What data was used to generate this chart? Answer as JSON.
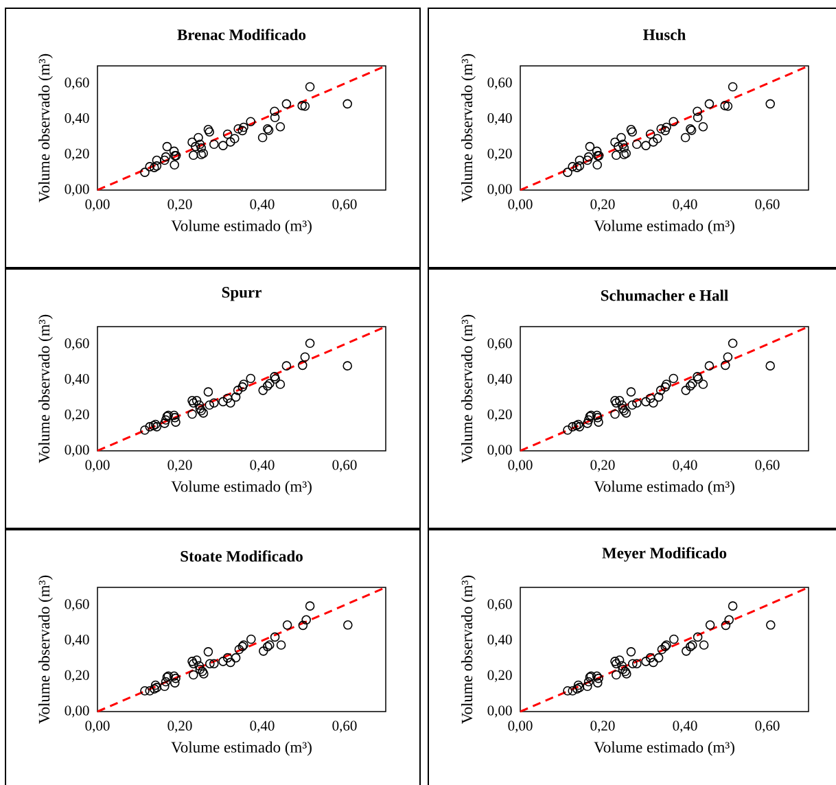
{
  "chart_data": [
    {
      "type": "scatter",
      "title": "**Brenac Modificado**",
      "xlabel": "Volume estimado (m³)",
      "ylabel": "Volume observado (m³)",
      "xlim": [
        0,
        0.7
      ],
      "ylim": [
        0,
        0.7
      ],
      "xticks": [
        {
          "value": 0,
          "label": "0,00"
        },
        {
          "value": 0.2,
          "label": "0,20"
        },
        {
          "value": 0.4,
          "label": "0,40"
        },
        {
          "value": 0.6,
          "label": "0,60"
        }
      ],
      "yticks": [
        {
          "value": 0,
          "label": "0,00"
        },
        {
          "value": 0.2,
          "label": "0,20"
        },
        {
          "value": 0.4,
          "label": "0,40"
        },
        {
          "value": 0.6,
          "label": "0,60"
        }
      ],
      "marker": "circle",
      "series": [
        {
          "color": "#000000",
          "x": [
            0.115,
            0.127,
            0.138,
            0.144,
            0.144,
            0.163,
            0.166,
            0.169,
            0.186,
            0.188,
            0.191,
            0.187,
            0.23,
            0.233,
            0.238,
            0.245,
            0.249,
            0.252,
            0.252,
            0.257,
            0.269,
            0.272,
            0.283,
            0.305,
            0.316,
            0.323,
            0.333,
            0.342,
            0.352,
            0.355,
            0.372,
            0.401,
            0.413,
            0.416,
            0.43,
            0.431,
            0.444,
            0.459,
            0.497,
            0.504,
            0.516,
            0.607
          ],
          "values": [
            0.1,
            0.132,
            0.127,
            0.136,
            0.168,
            0.168,
            0.187,
            0.245,
            0.219,
            0.194,
            0.194,
            0.142,
            0.27,
            0.196,
            0.245,
            0.296,
            0.258,
            0.238,
            0.2,
            0.207,
            0.341,
            0.328,
            0.258,
            0.251,
            0.315,
            0.271,
            0.29,
            0.345,
            0.335,
            0.354,
            0.386,
            0.296,
            0.345,
            0.337,
            0.444,
            0.409,
            0.357,
            0.486,
            0.476,
            0.473,
            0.582,
            0.486
          ]
        },
        {
          "type": "line",
          "color": "#ff0000",
          "line_style": "dashed",
          "marker": "none",
          "x": [
            0,
            0.7
          ],
          "values": [
            0,
            0.7
          ]
        }
      ]
    },
    {
      "type": "scatter",
      "title": "**Husch**",
      "xlabel": "Volume estimado (m³)",
      "ylabel": "Volume observado (m³)",
      "xlim": [
        0,
        0.7
      ],
      "ylim": [
        0,
        0.7
      ],
      "xticks": [
        {
          "value": 0,
          "label": "0,00"
        },
        {
          "value": 0.2,
          "label": "0,20"
        },
        {
          "value": 0.4,
          "label": "0,40"
        },
        {
          "value": 0.6,
          "label": "0,60"
        }
      ],
      "yticks": [
        {
          "value": 0,
          "label": "0,00"
        },
        {
          "value": 0.2,
          "label": "0,20"
        },
        {
          "value": 0.4,
          "label": "0,40"
        },
        {
          "value": 0.6,
          "label": "0,60"
        }
      ],
      "marker": "circle",
      "series": [
        {
          "color": "#000000",
          "x": [
            0.115,
            0.127,
            0.138,
            0.144,
            0.144,
            0.163,
            0.166,
            0.169,
            0.186,
            0.188,
            0.191,
            0.187,
            0.23,
            0.233,
            0.238,
            0.245,
            0.249,
            0.252,
            0.252,
            0.257,
            0.269,
            0.272,
            0.283,
            0.305,
            0.316,
            0.323,
            0.333,
            0.342,
            0.352,
            0.355,
            0.372,
            0.401,
            0.413,
            0.416,
            0.43,
            0.431,
            0.444,
            0.459,
            0.497,
            0.504,
            0.516,
            0.607
          ],
          "values": [
            0.1,
            0.132,
            0.127,
            0.136,
            0.168,
            0.168,
            0.187,
            0.245,
            0.219,
            0.194,
            0.194,
            0.142,
            0.27,
            0.196,
            0.245,
            0.296,
            0.258,
            0.238,
            0.2,
            0.207,
            0.341,
            0.328,
            0.258,
            0.251,
            0.315,
            0.271,
            0.29,
            0.345,
            0.335,
            0.354,
            0.386,
            0.296,
            0.345,
            0.337,
            0.444,
            0.409,
            0.357,
            0.486,
            0.476,
            0.473,
            0.582,
            0.486
          ]
        },
        {
          "type": "line",
          "color": "#ff0000",
          "line_style": "dashed",
          "marker": "none",
          "x": [
            0,
            0.7
          ],
          "values": [
            0,
            0.7
          ]
        }
      ]
    },
    {
      "type": "scatter",
      "title": "**Spurr**",
      "xlabel": "Volume estimado (m³)",
      "ylabel": "Volume observado (m³)",
      "xlim": [
        0,
        0.7
      ],
      "ylim": [
        0,
        0.7
      ],
      "xticks": [
        {
          "value": 0,
          "label": "0,00"
        },
        {
          "value": 0.2,
          "label": "0,20"
        },
        {
          "value": 0.4,
          "label": "0,40"
        },
        {
          "value": 0.6,
          "label": "0,60"
        }
      ],
      "yticks": [
        {
          "value": 0,
          "label": "0,00"
        },
        {
          "value": 0.2,
          "label": "0,20"
        },
        {
          "value": 0.4,
          "label": "0,40"
        },
        {
          "value": 0.6,
          "label": "0,60"
        }
      ],
      "marker": "circle",
      "series": [
        {
          "color": "#000000",
          "x": [
            0.115,
            0.127,
            0.136,
            0.141,
            0.144,
            0.163,
            0.166,
            0.169,
            0.172,
            0.186,
            0.188,
            0.19,
            0.23,
            0.233,
            0.23,
            0.241,
            0.247,
            0.249,
            0.252,
            0.257,
            0.269,
            0.272,
            0.283,
            0.305,
            0.316,
            0.323,
            0.336,
            0.341,
            0.352,
            0.355,
            0.372,
            0.402,
            0.413,
            0.418,
            0.43,
            0.432,
            0.444,
            0.459,
            0.498,
            0.504,
            0.516,
            0.607
          ],
          "values": [
            0.117,
            0.136,
            0.142,
            0.149,
            0.136,
            0.155,
            0.174,
            0.194,
            0.2,
            0.2,
            0.187,
            0.162,
            0.283,
            0.27,
            0.207,
            0.283,
            0.258,
            0.238,
            0.226,
            0.213,
            0.332,
            0.258,
            0.27,
            0.277,
            0.296,
            0.27,
            0.303,
            0.341,
            0.36,
            0.375,
            0.408,
            0.341,
            0.366,
            0.379,
            0.418,
            0.405,
            0.375,
            0.479,
            0.482,
            0.529,
            0.606,
            0.479
          ]
        },
        {
          "type": "line",
          "color": "#ff0000",
          "line_style": "dashed",
          "marker": "none",
          "x": [
            0,
            0.7
          ],
          "values": [
            0,
            0.7
          ]
        }
      ]
    },
    {
      "type": "scatter",
      "title": "**Schumacher e Hall**",
      "xlabel": "Volume estimado (m³)",
      "ylabel": "Volume observado (m³)",
      "xlim": [
        0,
        0.7
      ],
      "ylim": [
        0,
        0.7
      ],
      "xticks": [
        {
          "value": 0,
          "label": "0,00"
        },
        {
          "value": 0.2,
          "label": "0,20"
        },
        {
          "value": 0.4,
          "label": "0,40"
        },
        {
          "value": 0.6,
          "label": "0,60"
        }
      ],
      "yticks": [
        {
          "value": 0,
          "label": "0,00"
        },
        {
          "value": 0.2,
          "label": "0,20"
        },
        {
          "value": 0.4,
          "label": "0,40"
        },
        {
          "value": 0.6,
          "label": "0,60"
        }
      ],
      "marker": "circle",
      "series": [
        {
          "color": "#000000",
          "x": [
            0.115,
            0.127,
            0.136,
            0.141,
            0.144,
            0.163,
            0.166,
            0.169,
            0.172,
            0.186,
            0.188,
            0.19,
            0.23,
            0.233,
            0.23,
            0.241,
            0.247,
            0.249,
            0.252,
            0.257,
            0.269,
            0.272,
            0.283,
            0.305,
            0.316,
            0.323,
            0.336,
            0.341,
            0.352,
            0.355,
            0.372,
            0.402,
            0.413,
            0.418,
            0.43,
            0.432,
            0.444,
            0.459,
            0.498,
            0.504,
            0.516,
            0.607
          ],
          "values": [
            0.117,
            0.136,
            0.142,
            0.149,
            0.136,
            0.155,
            0.174,
            0.194,
            0.2,
            0.2,
            0.187,
            0.162,
            0.283,
            0.27,
            0.207,
            0.283,
            0.258,
            0.238,
            0.226,
            0.213,
            0.332,
            0.258,
            0.27,
            0.277,
            0.296,
            0.27,
            0.303,
            0.341,
            0.36,
            0.375,
            0.408,
            0.341,
            0.366,
            0.379,
            0.418,
            0.405,
            0.375,
            0.479,
            0.482,
            0.529,
            0.606,
            0.479
          ]
        },
        {
          "type": "line",
          "color": "#ff0000",
          "line_style": "dashed",
          "marker": "none",
          "x": [
            0,
            0.7
          ],
          "values": [
            0,
            0.7
          ]
        }
      ]
    },
    {
      "type": "scatter",
      "title": "**Stoate Modificado**",
      "xlabel": "Volume estimado (m³)",
      "ylabel": "Volume observado (m³)",
      "xlim": [
        0,
        0.7
      ],
      "ylim": [
        0,
        0.7
      ],
      "xticks": [
        {
          "value": 0,
          "label": "0,00"
        },
        {
          "value": 0.2,
          "label": "0,20"
        },
        {
          "value": 0.4,
          "label": "0,40"
        },
        {
          "value": 0.6,
          "label": "0,60"
        }
      ],
      "yticks": [
        {
          "value": 0,
          "label": "0,00"
        },
        {
          "value": 0.2,
          "label": "0,20"
        },
        {
          "value": 0.4,
          "label": "0,40"
        },
        {
          "value": 0.6,
          "label": "0,60"
        }
      ],
      "marker": "circle",
      "series": [
        {
          "color": "#000000",
          "x": [
            0.115,
            0.127,
            0.138,
            0.141,
            0.144,
            0.163,
            0.166,
            0.169,
            0.172,
            0.186,
            0.19,
            0.188,
            0.23,
            0.233,
            0.233,
            0.241,
            0.247,
            0.249,
            0.255,
            0.258,
            0.269,
            0.273,
            0.283,
            0.305,
            0.316,
            0.323,
            0.336,
            0.344,
            0.352,
            0.355,
            0.373,
            0.403,
            0.413,
            0.418,
            0.431,
            0.446,
            0.461,
            0.499,
            0.507,
            0.516,
            0.608
          ],
          "values": [
            0.117,
            0.117,
            0.128,
            0.149,
            0.136,
            0.142,
            0.168,
            0.194,
            0.2,
            0.2,
            0.187,
            0.162,
            0.283,
            0.27,
            0.207,
            0.29,
            0.258,
            0.238,
            0.226,
            0.213,
            0.337,
            0.27,
            0.27,
            0.283,
            0.303,
            0.277,
            0.303,
            0.35,
            0.367,
            0.375,
            0.408,
            0.341,
            0.366,
            0.375,
            0.42,
            0.375,
            0.488,
            0.486,
            0.517,
            0.595,
            0.488
          ]
        },
        {
          "type": "line",
          "color": "#ff0000",
          "line_style": "dashed",
          "marker": "none",
          "x": [
            0,
            0.7
          ],
          "values": [
            0,
            0.7
          ]
        }
      ]
    },
    {
      "type": "scatter",
      "title": "**Meyer Modificado**",
      "xlabel": "Volume estimado (m³)",
      "ylabel": "Volume observado (m³)",
      "xlim": [
        0,
        0.7
      ],
      "ylim": [
        0,
        0.7
      ],
      "xticks": [
        {
          "value": 0,
          "label": "0,00"
        },
        {
          "value": 0.2,
          "label": "0,20"
        },
        {
          "value": 0.4,
          "label": "0,40"
        },
        {
          "value": 0.6,
          "label": "0,60"
        }
      ],
      "yticks": [
        {
          "value": 0,
          "label": "0,00"
        },
        {
          "value": 0.2,
          "label": "0,20"
        },
        {
          "value": 0.4,
          "label": "0,40"
        },
        {
          "value": 0.6,
          "label": "0,60"
        }
      ],
      "marker": "circle",
      "series": [
        {
          "color": "#000000",
          "x": [
            0.115,
            0.127,
            0.138,
            0.141,
            0.144,
            0.163,
            0.166,
            0.169,
            0.172,
            0.186,
            0.19,
            0.188,
            0.23,
            0.233,
            0.233,
            0.241,
            0.247,
            0.249,
            0.255,
            0.258,
            0.269,
            0.273,
            0.283,
            0.305,
            0.316,
            0.323,
            0.336,
            0.344,
            0.352,
            0.355,
            0.373,
            0.403,
            0.413,
            0.418,
            0.431,
            0.446,
            0.461,
            0.499,
            0.507,
            0.516,
            0.608
          ],
          "values": [
            0.117,
            0.117,
            0.128,
            0.149,
            0.136,
            0.142,
            0.168,
            0.194,
            0.2,
            0.2,
            0.187,
            0.162,
            0.283,
            0.27,
            0.207,
            0.29,
            0.258,
            0.238,
            0.226,
            0.213,
            0.337,
            0.27,
            0.27,
            0.283,
            0.303,
            0.277,
            0.303,
            0.35,
            0.367,
            0.375,
            0.408,
            0.341,
            0.366,
            0.375,
            0.42,
            0.375,
            0.488,
            0.486,
            0.517,
            0.595,
            0.488
          ]
        },
        {
          "type": "line",
          "color": "#ff0000",
          "line_style": "dashed",
          "marker": "none",
          "x": [
            0,
            0.7
          ],
          "values": [
            0,
            0.7
          ]
        }
      ]
    }
  ]
}
